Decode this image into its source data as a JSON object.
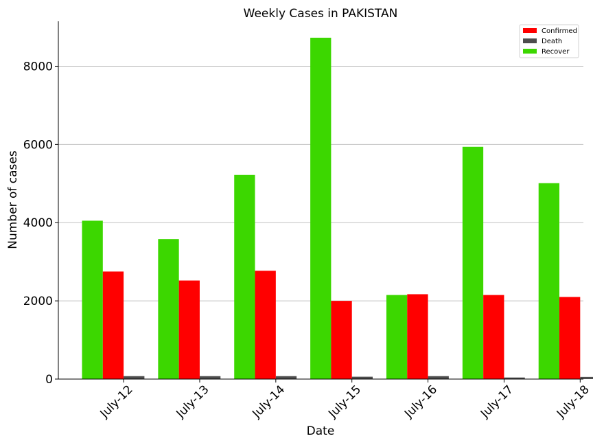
{
  "chart_data": {
    "type": "bar",
    "title": "Weekly Cases in PAKISTAN",
    "xlabel": "Date",
    "ylabel": "Number of cases",
    "categories": [
      "July-12",
      "July-13",
      "July-14",
      "July-15",
      "July-16",
      "July-17",
      "July-18"
    ],
    "series": [
      {
        "name": "Recover",
        "color": "#3cd700",
        "values": [
          4050,
          3580,
          5220,
          8730,
          2150,
          5940,
          5010
        ]
      },
      {
        "name": "Confirmed",
        "color": "#ff0000",
        "values": [
          2750,
          2520,
          2770,
          2000,
          2170,
          2150,
          2100
        ]
      },
      {
        "name": "Death",
        "color": "#4d4d4d",
        "values": [
          75,
          75,
          75,
          60,
          75,
          40,
          55
        ]
      }
    ],
    "legend_order": [
      "Confirmed",
      "Death",
      "Recover"
    ],
    "ylim": [
      0,
      9150
    ],
    "yticks": [
      0,
      2000,
      4000,
      6000,
      8000
    ],
    "grid": "horizontal",
    "legend_position": "top-right"
  }
}
